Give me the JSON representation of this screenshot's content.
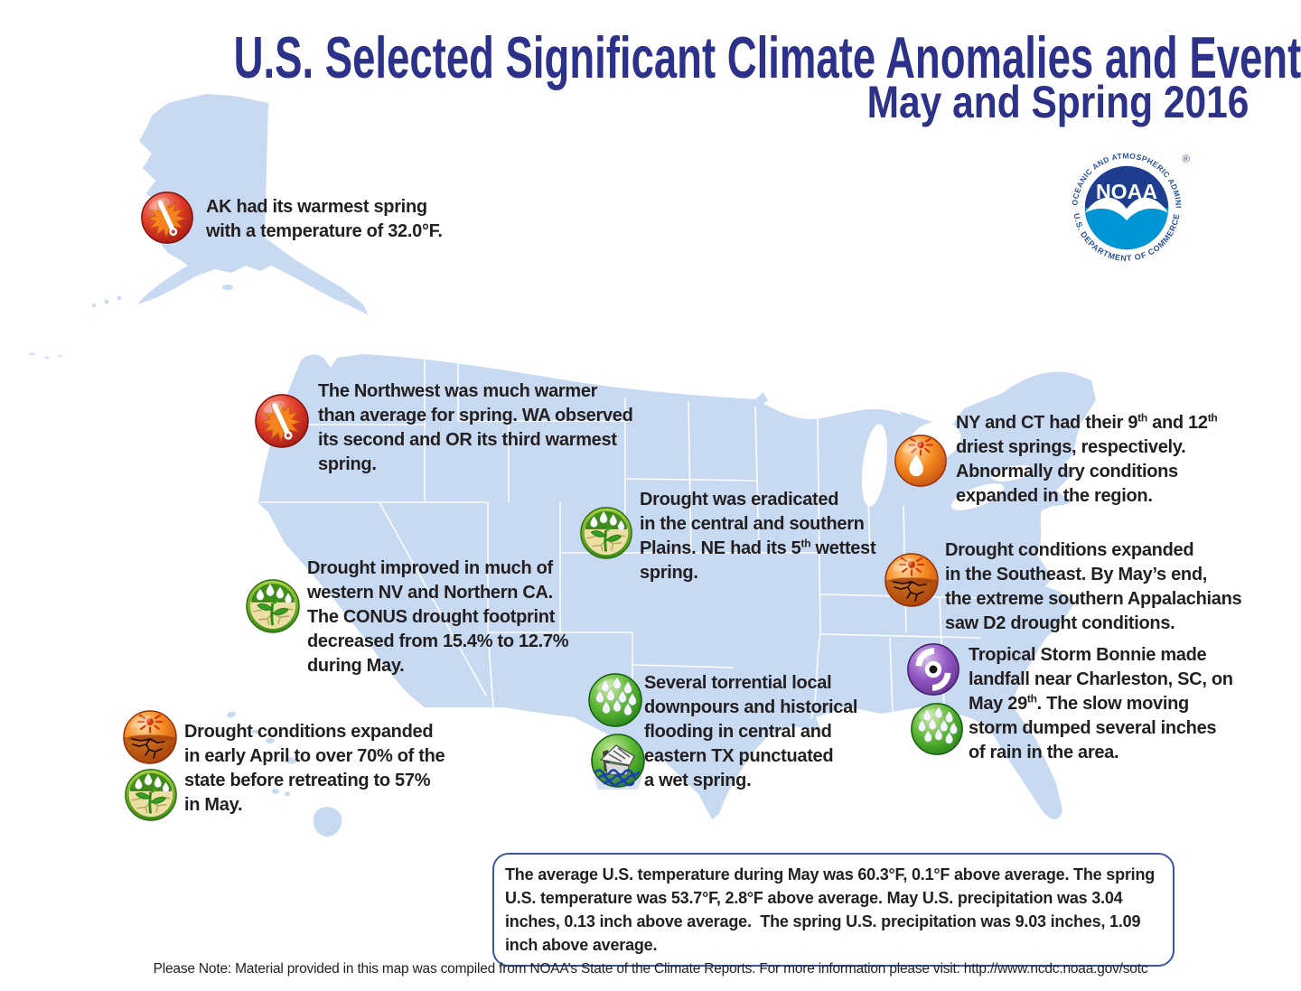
{
  "page": {
    "title": "U.S. Selected Significant Climate Anomalies and Events",
    "subtitle": "May and Spring 2016",
    "footer_note": "Please Note: Material provided in this map was compiled from NOAA’s State of the Climate Reports. For more information please visit: http://www.ncdc.noaa.gov/sotc"
  },
  "colors": {
    "title_navy": "#2c3189",
    "map_fill": "#c8daf1",
    "map_stroke": "#ffffff",
    "text_dark": "#231f20",
    "box_border": "#3a55a4",
    "logo_blue": "#2a52a0"
  },
  "logo": {
    "acronym": "NOAA",
    "top_arc_text": "NATIONAL OCEANIC AND ATMOSPHERIC ADMINISTRATION",
    "bottom_arc_text": "U.S. DEPARTMENT OF COMMERCE",
    "registered": "®"
  },
  "callouts": [
    {
      "id": "alaska",
      "icons": [
        "warm-thermometer"
      ],
      "text": "AK had its warmest spring\nwith a temperature of 32.0°F."
    },
    {
      "id": "northwest",
      "icons": [
        "warm-thermometer"
      ],
      "text": "The Northwest was much warmer\nthan average for spring. WA observed\nits second and OR its third warmest\nspring."
    },
    {
      "id": "ny-ct",
      "icons": [
        "dry-conditions"
      ],
      "text": "NY and CT had their 9^{th} and 12^{th}\ndriest springs, respectively.\nAbnormally dry conditions\nexpanded in the region."
    },
    {
      "id": "plains",
      "icons": [
        "drought-improvement"
      ],
      "text": "Drought was eradicated\nin the central and southern\nPlains. NE had its 5^{th} wettest\nspring."
    },
    {
      "id": "nv-ca",
      "icons": [
        "drought-improvement"
      ],
      "text": "Drought improved in much of\nwestern NV and Northern CA.\nThe CONUS drought footprint\ndecreased from 15.4% to 12.7%\nduring May."
    },
    {
      "id": "southeast",
      "icons": [
        "drought"
      ],
      "text": "Drought conditions expanded\nin the Southeast. By May’s end,\nthe extreme southern Appalachians\nsaw D2 drought conditions."
    },
    {
      "id": "bonnie",
      "icons": [
        "hurricane",
        "rain"
      ],
      "text": "Tropical Storm Bonnie made\nlandfall near Charleston, SC, on\nMay 29^{th}. The slow moving\nstorm dumped several inches\nof rain in the area."
    },
    {
      "id": "hawaii",
      "icons": [
        "drought",
        "drought-improvement"
      ],
      "text": "Drought conditions expanded\nin early April to over 70% of the\nstate before retreating to 57%\nin May."
    },
    {
      "id": "texas",
      "icons": [
        "rain",
        "flood"
      ],
      "text": "Several torrential local\ndownpours and historical\nflooding in central and\neastern TX punctuated\na wet spring."
    }
  ],
  "summary_box": {
    "text": "The average U.S. temperature during May was 60.3°F, 0.1°F above average. The spring U.S. temperature was 53.7°F, 2.8°F above average. May U.S. precipitation was 3.04 inches, 0.13 inch above average.  The spring U.S. precipitation was 9.03 inches, 1.09 inch above average."
  }
}
